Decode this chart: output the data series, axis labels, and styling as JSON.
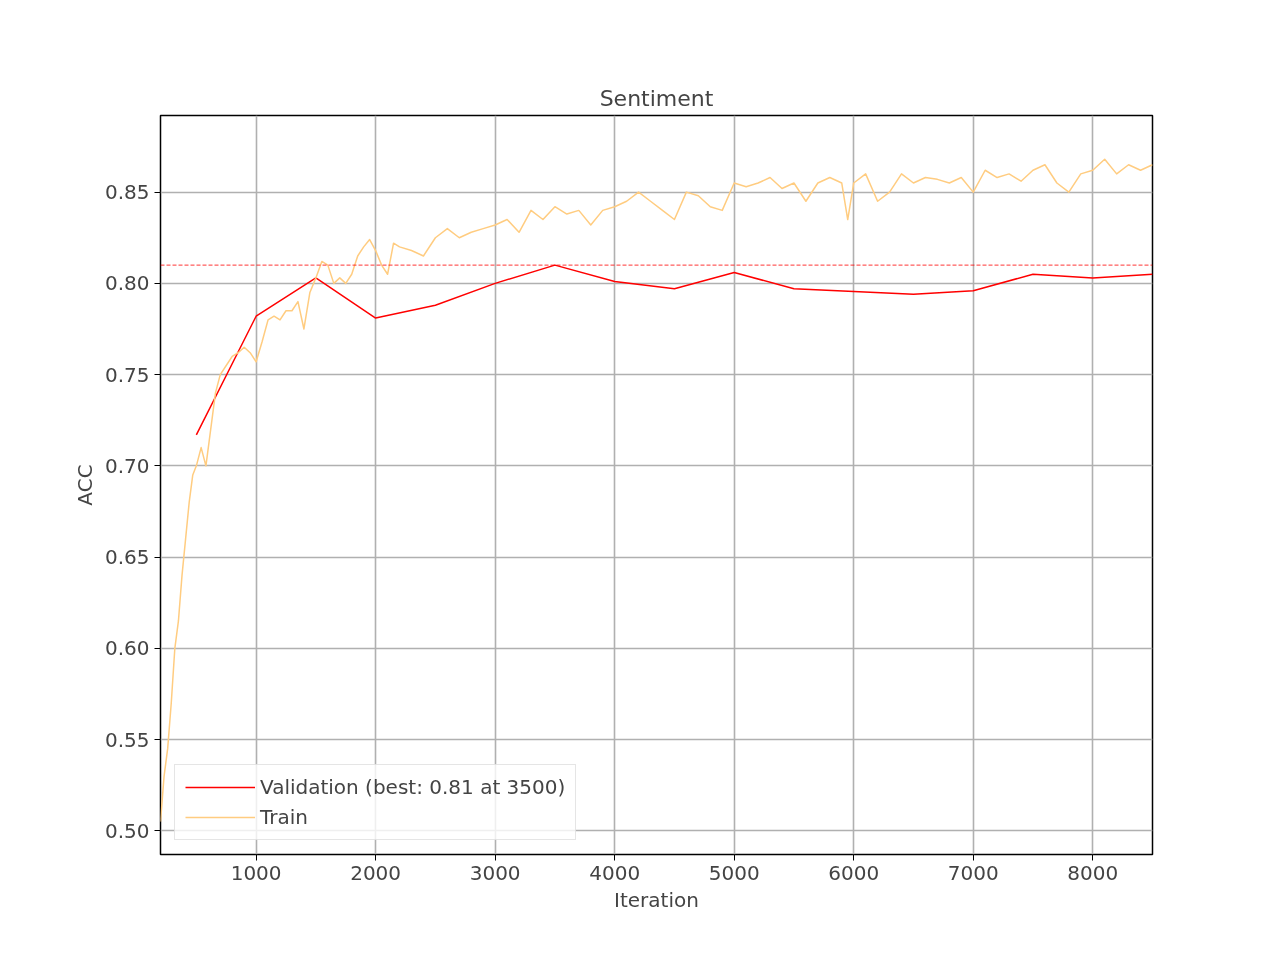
{
  "chart_data": {
    "type": "line",
    "title": "Sentiment",
    "xlabel": "Iteration",
    "ylabel": "ACC",
    "xlim": [
      200,
      8500
    ],
    "ylim": [
      0.487,
      0.892
    ],
    "xticks": [
      1000,
      2000,
      3000,
      4000,
      5000,
      6000,
      7000,
      8000
    ],
    "yticks": [
      {
        "value": 0.5,
        "label": "0.50"
      },
      0.55,
      {
        "value": 0.6,
        "label": "0.60"
      },
      0.65,
      {
        "value": 0.7,
        "label": "0.70"
      },
      0.75,
      {
        "value": 0.8,
        "label": "0.80"
      },
      0.85
    ],
    "grid": true,
    "legend": "bottom left",
    "line_style": "solid",
    "ref_lines": [
      {
        "axis": "y",
        "value": 0.81,
        "color": "#ff0000",
        "line_style": "dashed"
      }
    ],
    "series": [
      {
        "name": "Validation (best: 0.81 at 3500)",
        "color": "#ff0000",
        "x": [
          500,
          1000,
          1500,
          2000,
          2500,
          3000,
          3500,
          4000,
          4500,
          5000,
          5500,
          6000,
          6500,
          7000,
          7500,
          8000,
          8500
        ],
        "values": [
          0.717,
          0.782,
          0.803,
          0.781,
          0.788,
          0.8,
          0.81,
          0.801,
          0.797,
          0.806,
          0.797,
          0.7955,
          0.794,
          0.796,
          0.805,
          0.803,
          0.805
        ]
      },
      {
        "name": "Train",
        "color": "#ffcc80",
        "x": [
          200,
          230,
          260,
          290,
          320,
          350,
          380,
          410,
          440,
          470,
          500,
          540,
          580,
          620,
          660,
          700,
          750,
          800,
          850,
          900,
          950,
          1000,
          1050,
          1100,
          1150,
          1200,
          1250,
          1300,
          1350,
          1400,
          1450,
          1500,
          1550,
          1600,
          1650,
          1700,
          1750,
          1800,
          1850,
          1900,
          1950,
          2000,
          2050,
          2100,
          2150,
          2200,
          2300,
          2400,
          2500,
          2600,
          2700,
          2800,
          2900,
          3000,
          3100,
          3200,
          3300,
          3400,
          3500,
          3600,
          3700,
          3800,
          3900,
          4000,
          4100,
          4200,
          4300,
          4400,
          4500,
          4600,
          4700,
          4800,
          4900,
          5000,
          5100,
          5200,
          5300,
          5400,
          5500,
          5600,
          5700,
          5800,
          5900,
          5950,
          6000,
          6100,
          6200,
          6300,
          6400,
          6500,
          6600,
          6700,
          6800,
          6900,
          7000,
          7100,
          7200,
          7300,
          7400,
          7500,
          7600,
          7700,
          7800,
          7900,
          8000,
          8100,
          8200,
          8300,
          8400,
          8500
        ],
        "values": [
          0.505,
          0.53,
          0.545,
          0.57,
          0.6,
          0.615,
          0.64,
          0.66,
          0.68,
          0.695,
          0.7,
          0.71,
          0.7,
          0.72,
          0.74,
          0.75,
          0.755,
          0.76,
          0.762,
          0.765,
          0.762,
          0.757,
          0.768,
          0.78,
          0.782,
          0.78,
          0.785,
          0.785,
          0.79,
          0.775,
          0.795,
          0.803,
          0.812,
          0.81,
          0.8,
          0.803,
          0.8,
          0.805,
          0.815,
          0.82,
          0.824,
          0.818,
          0.81,
          0.805,
          0.822,
          0.82,
          0.818,
          0.815,
          0.825,
          0.83,
          0.825,
          0.828,
          0.83,
          0.832,
          0.835,
          0.828,
          0.84,
          0.835,
          0.842,
          0.838,
          0.84,
          0.832,
          0.84,
          0.842,
          0.845,
          0.85,
          0.845,
          0.84,
          0.835,
          0.85,
          0.848,
          0.842,
          0.84,
          0.855,
          0.853,
          0.855,
          0.858,
          0.852,
          0.855,
          0.845,
          0.855,
          0.858,
          0.855,
          0.835,
          0.855,
          0.86,
          0.845,
          0.85,
          0.86,
          0.855,
          0.858,
          0.857,
          0.855,
          0.858,
          0.85,
          0.862,
          0.858,
          0.86,
          0.856,
          0.862,
          0.865,
          0.855,
          0.85,
          0.86,
          0.862,
          0.868,
          0.86,
          0.865,
          0.862,
          0.865
        ]
      }
    ]
  }
}
